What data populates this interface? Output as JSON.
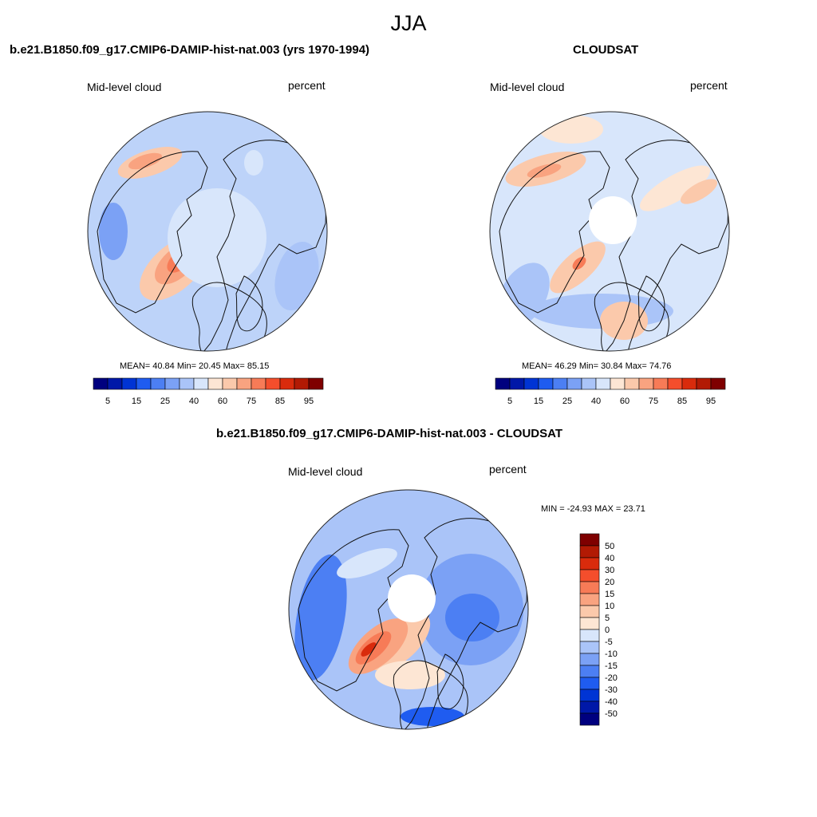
{
  "season": "JJA",
  "palette": {
    "abs_colors": [
      "#00007f",
      "#0018a8",
      "#0034d4",
      "#1f5cf0",
      "#4c7ff3",
      "#7ba1f5",
      "#aac4f8",
      "#d8e6fb",
      "#fde6d4",
      "#fbc9ab",
      "#f9a380",
      "#f77b57",
      "#f44e2c",
      "#d92b0c",
      "#b21a04",
      "#7f0000"
    ],
    "diff_colors": [
      "#00007f",
      "#0018a8",
      "#0034d4",
      "#1f5cf0",
      "#4c7ff3",
      "#7ba1f5",
      "#aac4f8",
      "#d8e6fb",
      "#fde6d4",
      "#fbc9ab",
      "#f9a380",
      "#f77b57",
      "#f44e2c",
      "#d92b0c",
      "#b21a04",
      "#7f0000"
    ]
  },
  "panels": [
    {
      "id": "model",
      "title": "b.e21.B1850.f09_g17.CMIP6-DAMIP-hist-nat.003 (yrs 1970-1994)",
      "left_label": "Mid-level cloud",
      "right_label": "percent",
      "stats": "MEAN=  40.84  Min=  20.45  Max=  85.15",
      "colorbar_ticks": [
        "5",
        "15",
        "25",
        "40",
        "60",
        "75",
        "85",
        "95"
      ],
      "has_pole_hole": false,
      "background_color": "#bdd3f9"
    },
    {
      "id": "obs",
      "title": "CLOUDSAT",
      "left_label": "Mid-level cloud",
      "right_label": "percent",
      "stats": "MEAN=  46.29  Min=  30.84  Max=  74.76",
      "colorbar_ticks": [
        "5",
        "15",
        "25",
        "40",
        "60",
        "75",
        "85",
        "95"
      ],
      "has_pole_hole": true,
      "background_color": "#d8e6fb"
    },
    {
      "id": "diff",
      "title": "b.e21.B1850.f09_g17.CMIP6-DAMIP-hist-nat.003 - CLOUDSAT",
      "left_label": "Mid-level cloud",
      "right_label": "percent",
      "stats": "MIN = -24.93 MAX =  23.71",
      "colorbar_ticks": [
        "50",
        "40",
        "30",
        "20",
        "15",
        "10",
        "5",
        "0",
        "-5",
        "-10",
        "-15",
        "-20",
        "-30",
        "-40",
        "-50"
      ],
      "has_pole_hole": true,
      "background_color": "#aac4f8"
    }
  ]
}
